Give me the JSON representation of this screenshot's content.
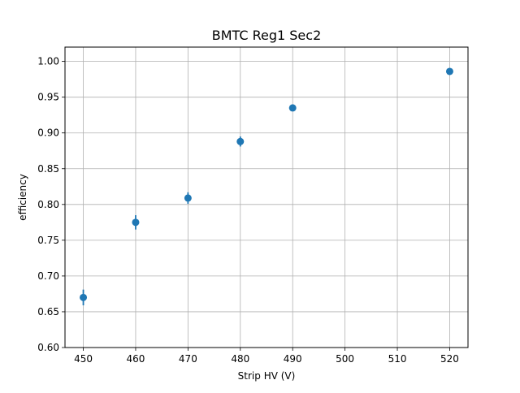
{
  "chart_data": {
    "type": "scatter",
    "title": "BMTC Reg1 Sec2",
    "xlabel": "Strip HV (V)",
    "ylabel": "efficiency",
    "xlim": [
      446.5,
      523.5
    ],
    "ylim": [
      0.6,
      1.02
    ],
    "xticks": [
      450,
      460,
      470,
      480,
      490,
      500,
      510,
      520
    ],
    "yticks": [
      0.6,
      0.65,
      0.7,
      0.75,
      0.8,
      0.85,
      0.9,
      0.95,
      1.0
    ],
    "xtick_labels": [
      "450",
      "460",
      "470",
      "480",
      "490",
      "500",
      "510",
      "520"
    ],
    "ytick_labels": [
      "0.60",
      "0.65",
      "0.70",
      "0.75",
      "0.80",
      "0.85",
      "0.90",
      "0.95",
      "1.00"
    ],
    "grid": true,
    "series": [
      {
        "color": "#1f77b4",
        "points": [
          {
            "x": 450,
            "y": 0.67,
            "yerr": 0.011
          },
          {
            "x": 460,
            "y": 0.775,
            "yerr": 0.01
          },
          {
            "x": 470,
            "y": 0.809,
            "yerr": 0.008
          },
          {
            "x": 480,
            "y": 0.888,
            "yerr": 0.007
          },
          {
            "x": 490,
            "y": 0.935,
            "yerr": 0.004
          },
          {
            "x": 520,
            "y": 0.986,
            "yerr": 0.002
          }
        ]
      }
    ]
  }
}
